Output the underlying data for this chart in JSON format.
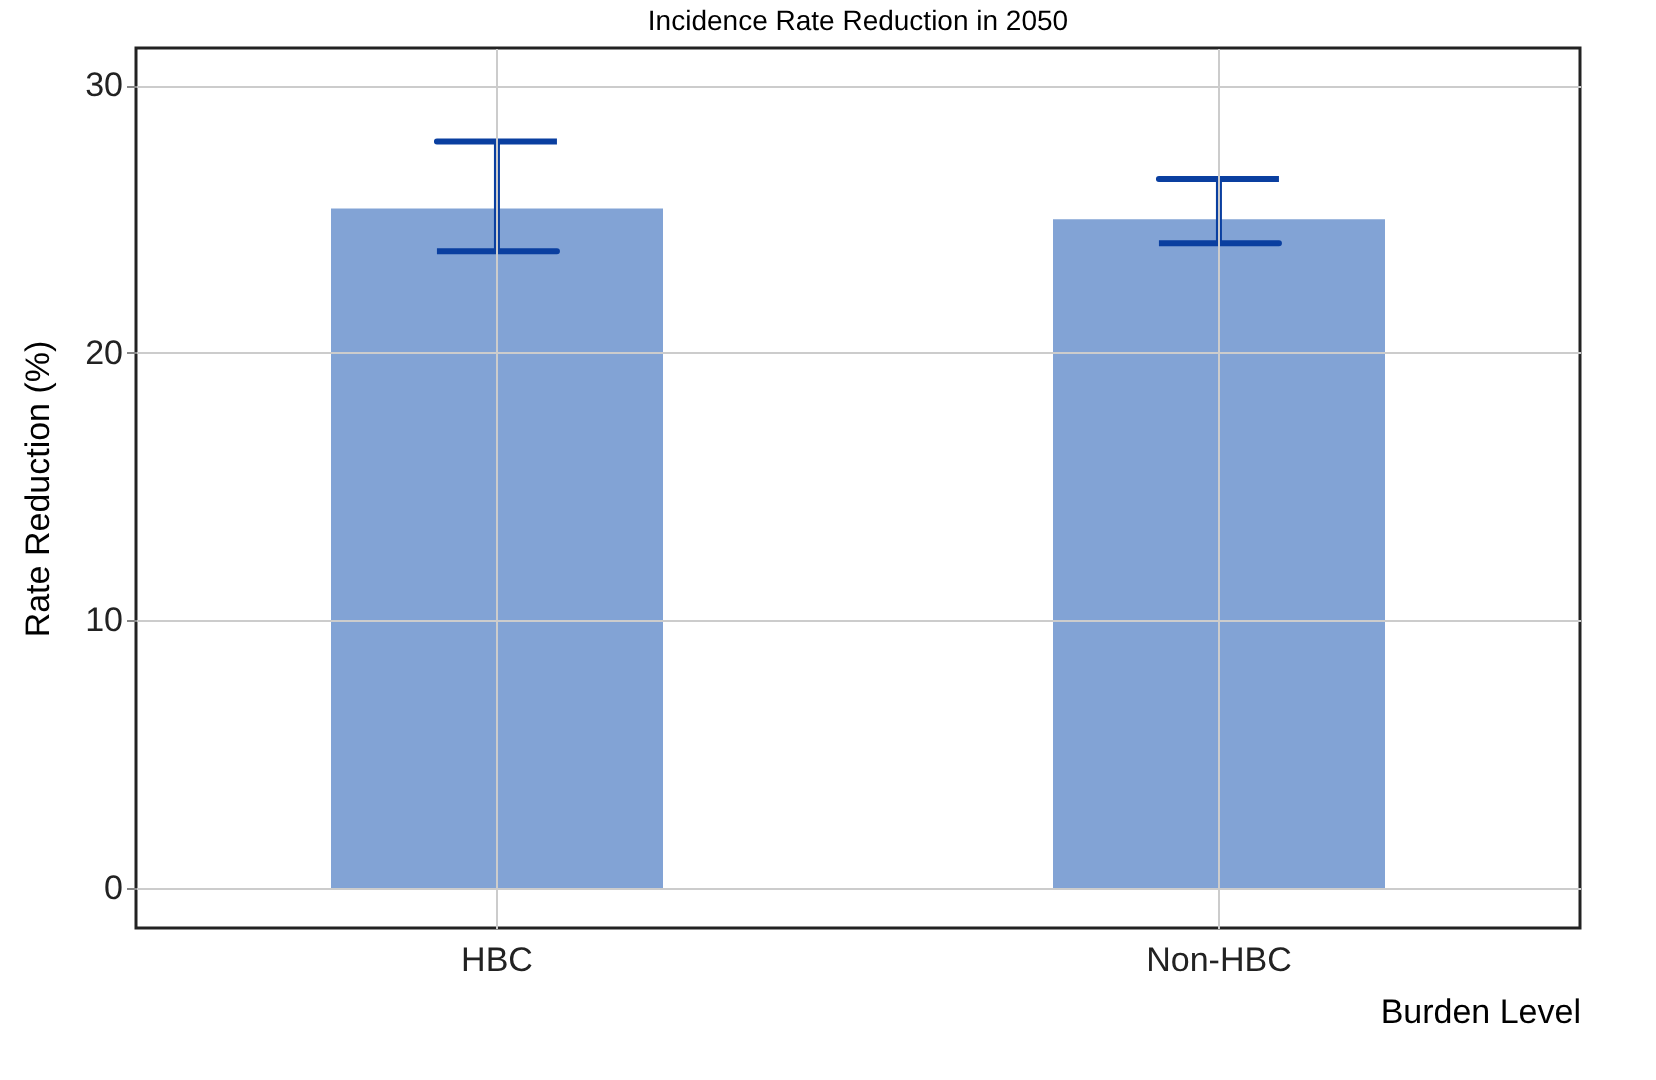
{
  "chart_data": {
    "type": "bar",
    "title": "Incidence Rate Reduction in 2050",
    "xlabel": "Burden Level",
    "ylabel": "Rate Reduction (%)",
    "categories": [
      "HBC",
      "Non-HBC"
    ],
    "values": [
      25.4,
      25.0
    ],
    "errors": [
      [
        23.8,
        27.9
      ],
      [
        24.1,
        26.5
      ]
    ],
    "color": "#82a3d5",
    "ylim": [
      -1.5,
      31.4
    ],
    "yticks": [
      0,
      10,
      20,
      30
    ],
    "grid": true
  }
}
